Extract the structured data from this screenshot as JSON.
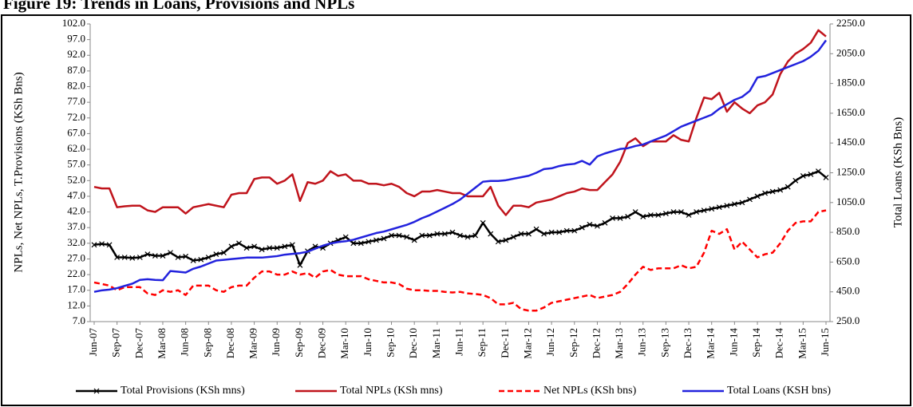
{
  "chart_data": {
    "type": "line",
    "title": "Figure 19: Trends in Loans, Provisions and NPLs",
    "y_label": "NPLs, Net NPLs, T.Provisions (KSh Bns)",
    "y2_label": "Total Loans (KSh Bns)",
    "categories": [
      "Jun-07",
      null,
      null,
      "Sep-07",
      null,
      null,
      "Dec-07",
      null,
      null,
      "Mar-08",
      null,
      null,
      "Jun-08",
      null,
      null,
      "Sep-08",
      null,
      null,
      "Dec-08",
      null,
      null,
      "Mar-09",
      null,
      null,
      "Jun-09",
      null,
      null,
      "Sep-09",
      null,
      null,
      "Dec-09",
      null,
      null,
      "Mar-10",
      null,
      null,
      "Jun-10",
      null,
      null,
      "Sep-10",
      null,
      null,
      "Dec-10",
      null,
      null,
      "Mar-11",
      null,
      null,
      "Jun-11",
      null,
      null,
      "Sep-11",
      null,
      null,
      "Dec-11",
      null,
      null,
      "Mar-12",
      null,
      null,
      "Jun-12",
      null,
      null,
      "Sep-12",
      null,
      null,
      "Dec-12",
      null,
      null,
      "Mar-13",
      null,
      null,
      "Jun-13",
      null,
      null,
      "Sep-13",
      null,
      null,
      "Dec-13",
      null,
      null,
      "Mar-14",
      null,
      null,
      "Jun-14",
      null,
      null,
      "Sep-14",
      null,
      null,
      "Dec-14",
      null,
      null,
      "Mar-15",
      null,
      null,
      "Jun-15"
    ],
    "series": [
      {
        "name": "Total Provisions (KSh mns)",
        "color": "#000000",
        "marker": "x",
        "values": [
          31.5,
          31.8,
          31.5,
          27.5,
          27.5,
          27.3,
          27.5,
          28.5,
          28,
          28,
          29,
          27.5,
          27.8,
          26.5,
          26.8,
          27.5,
          28.5,
          29,
          31,
          32,
          30.5,
          31,
          30,
          30.5,
          30.5,
          31,
          31.5,
          25,
          29.5,
          31,
          30.5,
          32,
          33,
          34,
          32,
          32,
          32.5,
          33,
          33.5,
          34.5,
          34.5,
          34,
          33,
          34.5,
          34.5,
          35,
          35,
          35.5,
          34.5,
          34,
          34.5,
          38.5,
          35,
          32.5,
          33,
          34,
          35,
          35,
          36.5,
          35,
          35.5,
          35.5,
          36,
          36,
          37,
          38,
          37.5,
          38.5,
          40,
          40,
          40.5,
          42,
          40.5,
          41,
          41,
          41.5,
          42,
          42,
          41,
          42,
          42.5,
          43,
          43.5,
          44,
          44.5,
          45,
          46,
          47,
          48,
          48.5,
          49,
          50,
          52,
          53.5,
          54,
          55,
          53
        ]
      },
      {
        "name": "Total NPLs (KSh mns)",
        "color": "#c0141c",
        "values": [
          50,
          49.5,
          49.5,
          43.5,
          43.8,
          44,
          44,
          42.5,
          42,
          43.5,
          43.5,
          43.5,
          41.5,
          43.5,
          44,
          44.5,
          44,
          43.5,
          47.5,
          48,
          48,
          52.5,
          53,
          53,
          51,
          52,
          54,
          45.5,
          51.5,
          51,
          52,
          55,
          53.5,
          54,
          52,
          52,
          51,
          51,
          50.5,
          51,
          50,
          48,
          47,
          48.5,
          48.5,
          49,
          48.5,
          48,
          48,
          47,
          47,
          47,
          50,
          44,
          41,
          44,
          44,
          43.5,
          45,
          45.5,
          46,
          47,
          48,
          48.5,
          49.5,
          49,
          49,
          51.5,
          54,
          58,
          64,
          65.5,
          63,
          64.5,
          64.5,
          64.5,
          66.5,
          65,
          64.5,
          72,
          78.5,
          78,
          80,
          74,
          77,
          75,
          73.5,
          76,
          77,
          79.5,
          86,
          90,
          92.5,
          94,
          96,
          100,
          98
        ]
      },
      {
        "name": "Net NPLs (KSh bns)",
        "color": "#ff0000",
        "dashed": true,
        "values": [
          19.5,
          19,
          18.5,
          17,
          18,
          18,
          18,
          16,
          15.5,
          17,
          16.5,
          17,
          15.5,
          18.5,
          18.5,
          18.5,
          17,
          16.5,
          18,
          18.5,
          18.5,
          21,
          23,
          23,
          22,
          22,
          23,
          22,
          22.5,
          21,
          23,
          23.5,
          22,
          21.5,
          21.5,
          21.5,
          20.5,
          20,
          19.5,
          19.5,
          19,
          17.5,
          17,
          17,
          16.8,
          16.8,
          16.5,
          16.3,
          16.5,
          16,
          15.8,
          15.5,
          14.5,
          12.5,
          12.5,
          13,
          11,
          10.5,
          10.5,
          11.5,
          13,
          13.5,
          14,
          14.5,
          15,
          15.5,
          14.5,
          15,
          15.5,
          16.5,
          19,
          22,
          24.5,
          23.5,
          24,
          24,
          24,
          25,
          24,
          24.5,
          29,
          36,
          35,
          36.5,
          30,
          32.5,
          30,
          27.5,
          28.5,
          29,
          32,
          36,
          38.5,
          39,
          39,
          42,
          42.5
        ]
      },
      {
        "name": "Total Loans (KSH bns)",
        "color": "#2222dd",
        "axis": "y2",
        "values": [
          450,
          460,
          465,
          475,
          490,
          505,
          530,
          535,
          530,
          528,
          590,
          585,
          580,
          605,
          620,
          640,
          660,
          665,
          670,
          675,
          680,
          680,
          680,
          685,
          690,
          700,
          705,
          710,
          720,
          740,
          760,
          775,
          785,
          790,
          800,
          815,
          830,
          845,
          855,
          870,
          885,
          900,
          920,
          945,
          965,
          990,
          1015,
          1040,
          1070,
          1110,
          1150,
          1190,
          1195,
          1195,
          1200,
          1210,
          1220,
          1230,
          1250,
          1275,
          1280,
          1295,
          1305,
          1310,
          1330,
          1305,
          1360,
          1380,
          1395,
          1410,
          1415,
          1430,
          1440,
          1460,
          1480,
          1500,
          1530,
          1560,
          1580,
          1600,
          1620,
          1640,
          1680,
          1710,
          1740,
          1760,
          1800,
          1890,
          1900,
          1920,
          1940,
          1960,
          1980,
          2000,
          2030,
          2070,
          2140
        ]
      }
    ],
    "ylim": [
      7,
      102
    ],
    "yticks": [
      {
        "value": 7,
        "label": "7.0"
      },
      {
        "value": 12,
        "label": "12.0"
      },
      {
        "value": 17,
        "label": "17.0"
      },
      {
        "value": 22,
        "label": "22.0"
      },
      {
        "value": 27,
        "label": "27.0"
      },
      {
        "value": 32,
        "label": "32.0"
      },
      {
        "value": 37,
        "label": "37.0"
      },
      {
        "value": 42,
        "label": "42.0"
      },
      {
        "value": 47,
        "label": "47.0"
      },
      {
        "value": 52,
        "label": "52.0"
      },
      {
        "value": 57,
        "label": "57.0"
      },
      {
        "value": 62,
        "label": "62.0"
      },
      {
        "value": 67,
        "label": "67.0"
      },
      {
        "value": 72,
        "label": "72.0"
      },
      {
        "value": 77,
        "label": "77.0"
      },
      {
        "value": 82,
        "label": "82.0"
      },
      {
        "value": 87,
        "label": "87.0"
      },
      {
        "value": 92,
        "label": "92.0"
      },
      {
        "value": 97,
        "label": "97.0"
      },
      {
        "value": 102,
        "label": "102.0"
      }
    ],
    "y2lim": [
      250,
      2250
    ],
    "y2ticks": [
      {
        "value": 250,
        "label": "250.0"
      },
      {
        "value": 450,
        "label": "450.0"
      },
      {
        "value": 650,
        "label": "650.0"
      },
      {
        "value": 850,
        "label": "850.0"
      },
      {
        "value": 1050,
        "label": "1050.0"
      },
      {
        "value": 1250,
        "label": "1250.0"
      },
      {
        "value": 1450,
        "label": "1450.0"
      },
      {
        "value": 1650,
        "label": "1650.0"
      },
      {
        "value": 1850,
        "label": "1850.0"
      },
      {
        "value": 2050,
        "label": "2050.0"
      },
      {
        "value": 2250,
        "label": "2250.0"
      }
    ],
    "grid": false,
    "legend": "bottom"
  }
}
